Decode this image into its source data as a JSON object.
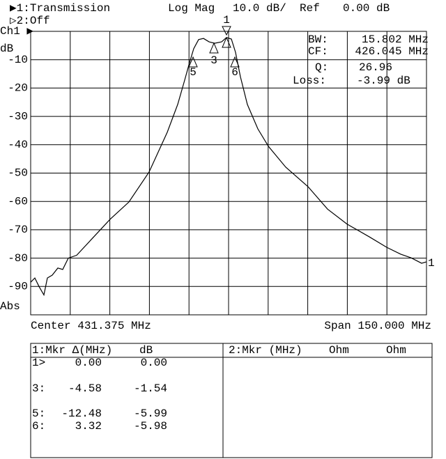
{
  "header": {
    "trace1": "▶1:Transmission",
    "format": "Log Mag",
    "scale": "10.0 dB/",
    "ref_label": "Ref",
    "ref": "0.00 dB",
    "trace2": "▷2:Off"
  },
  "chart_data": {
    "type": "line",
    "channel": "Ch1 ▶",
    "unit": "dB",
    "mode": "Abs",
    "x": [
      356.375,
      357.96,
      359.54,
      361.39,
      362.71,
      364.56,
      366.67,
      368.52,
      370.64,
      373.8,
      379.09,
      386.48,
      393.61,
      401.27,
      408.14,
      412.09,
      414.74,
      416.58,
      418.17,
      420.02,
      421.87,
      423.98,
      426.09,
      428.73,
      430.58,
      432.43,
      434.01,
      435.86,
      438.5,
      442.47,
      446.43,
      453.03,
      461.48,
      468.87,
      476.27,
      484.72,
      491.32,
      496.6,
      500.56,
      504.52,
      506.375
    ],
    "values": [
      -88.5,
      -87,
      -90,
      -93,
      -87,
      -86,
      -83.5,
      -84,
      -80,
      -79,
      -73.7,
      -66.3,
      -60.2,
      -49.6,
      -35.6,
      -25.8,
      -17.2,
      -11,
      -6.1,
      -2.9,
      -2.5,
      -3.7,
      -4.2,
      -3.7,
      -2.2,
      -2.7,
      -7.4,
      -16,
      -25.8,
      -34.4,
      -40.5,
      -47.9,
      -54.8,
      -62.7,
      -68,
      -72.5,
      -76.2,
      -78.6,
      -79.9,
      -81.8,
      -81.3
    ],
    "color": "#000000",
    "xlim": [
      356.375,
      506.375
    ],
    "xticks": [
      356.375,
      371.375,
      386.375,
      401.375,
      416.375,
      431.375,
      446.375,
      461.375,
      476.375,
      491.375,
      506.375
    ],
    "ylim": [
      -100,
      0
    ],
    "yticks": [
      -10,
      -20,
      -30,
      -40,
      -50,
      -60,
      -70,
      -80,
      -90
    ],
    "grid": true,
    "markers": [
      "1",
      "3",
      "5",
      "6",
      "1"
    ],
    "readout": {
      "bw_label": "BW:",
      "bw": "15.802 MHz",
      "cf_label": "CF:",
      "cf": "426.045 MHz",
      "q_label": "Q:",
      "q": "26.96",
      "loss_label": "Loss:",
      "loss": "-3.99 dB"
    },
    "center": "Center 431.375 MHz",
    "span": "Span 150.000 MHz"
  },
  "table": {
    "left_header": [
      "1:Mkr Δ(MHz)",
      "dB"
    ],
    "rows": [
      [
        "1>",
        "0.00",
        "0.00"
      ],
      [
        "3:",
        "-4.58",
        "-1.54"
      ],
      [
        "5:",
        "-12.48",
        "-5.99"
      ],
      [
        "6:",
        "3.32",
        "-5.98"
      ]
    ],
    "right_header": [
      "2:Mkr (MHz)",
      "Ohm",
      "Ohm"
    ]
  }
}
